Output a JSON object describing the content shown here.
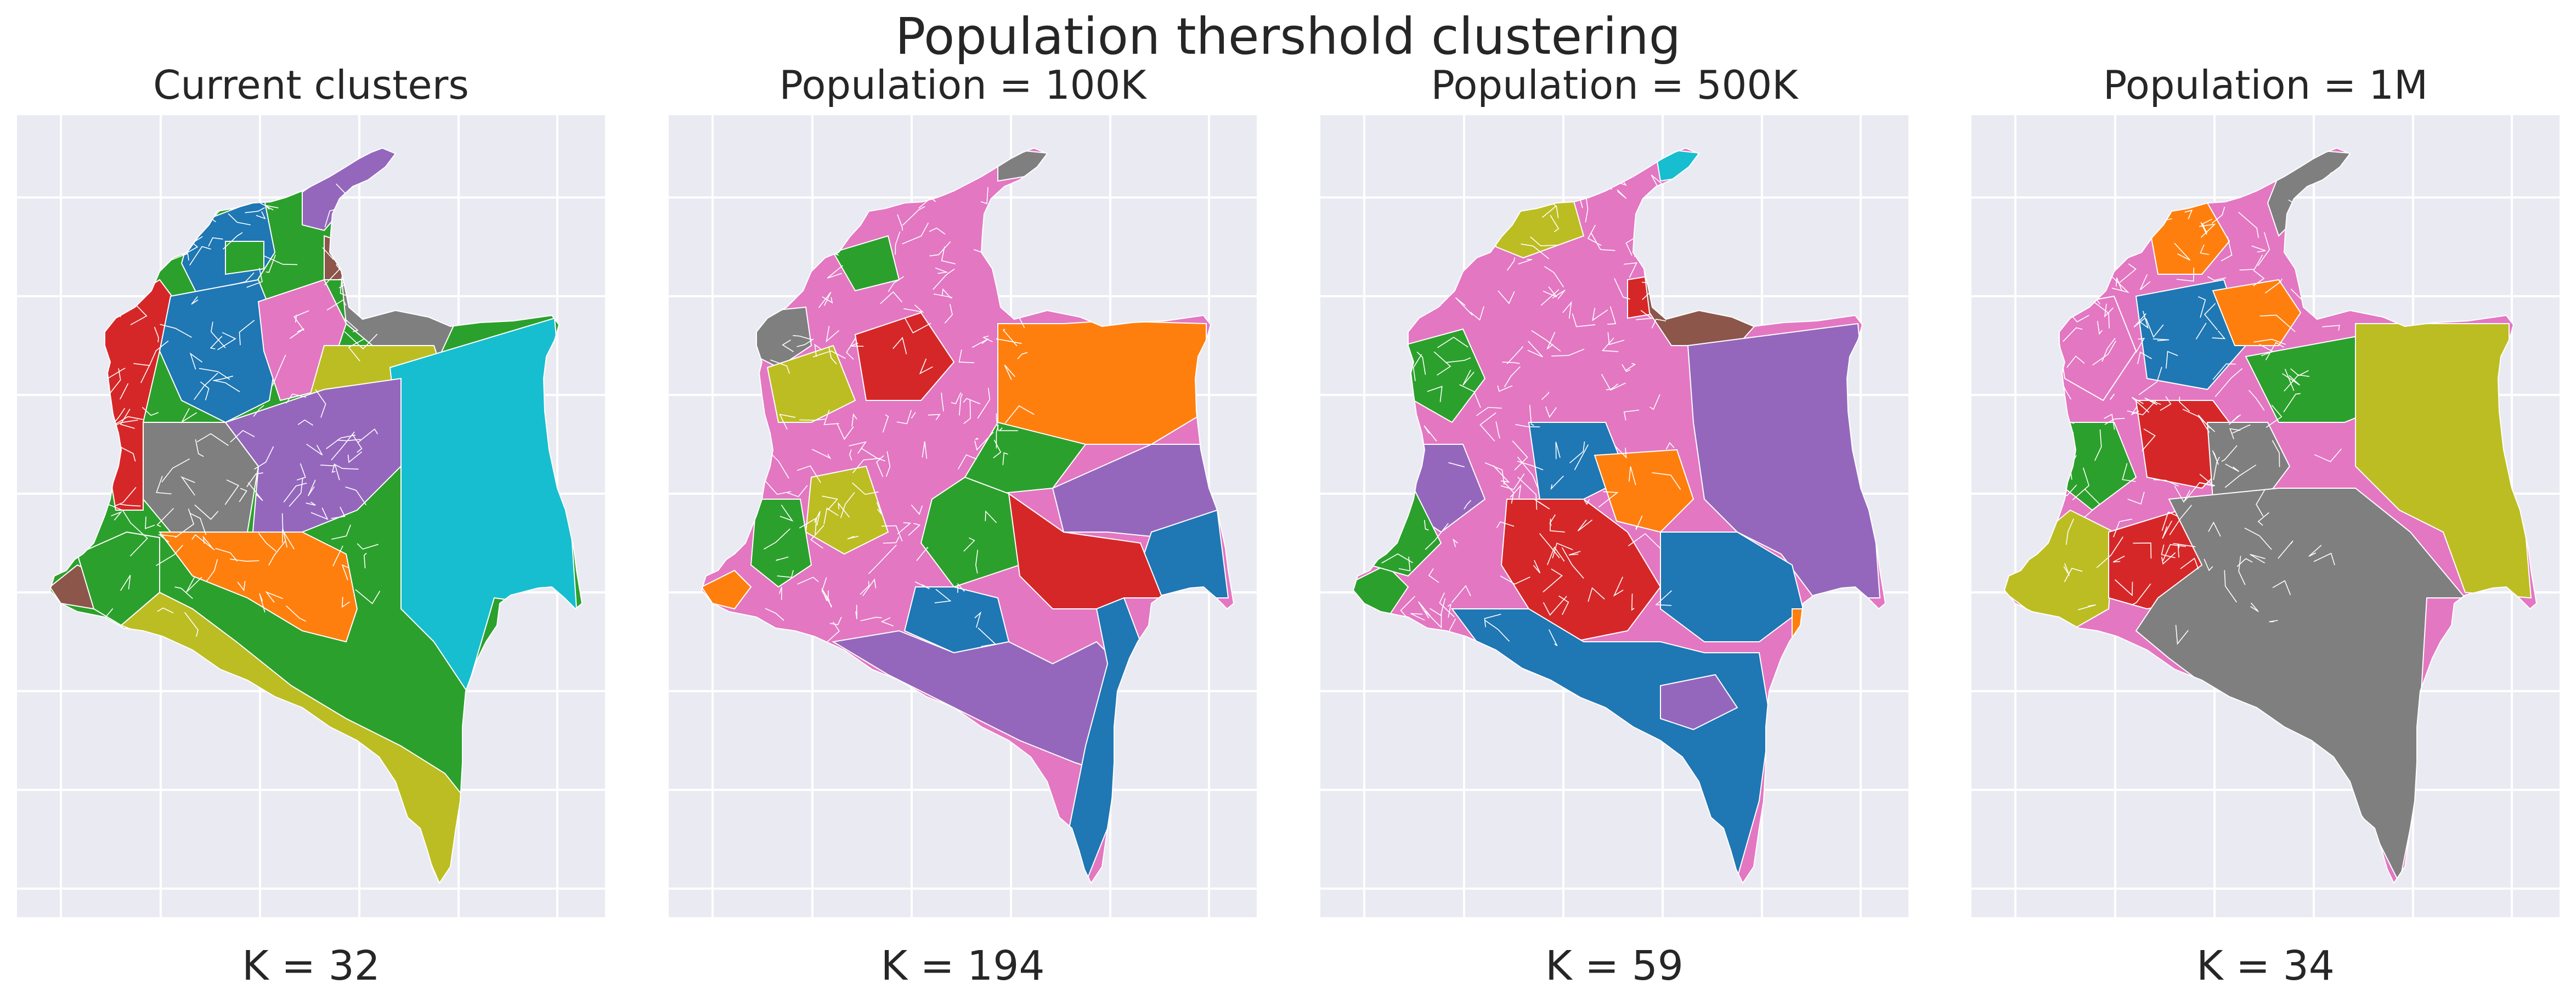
{
  "figure": {
    "title": "Population thershold clustering"
  },
  "panels": [
    {
      "title": "Current clusters",
      "k_label": "K = 32",
      "dominant_colors": [
        "#1f77b4",
        "#2ca02c",
        "#d62728",
        "#9467bd",
        "#8c564b",
        "#e377c2",
        "#7f7f7f",
        "#bcbd22",
        "#17becf",
        "#ff7f0e"
      ]
    },
    {
      "title": "Population = 100K",
      "k_label": "K = 194",
      "dominant_colors": [
        "#d62728",
        "#ff7f0e",
        "#9467bd",
        "#1f77b4",
        "#2ca02c",
        "#e377c2",
        "#bcbd22",
        "#17becf",
        "#7f7f7f",
        "#8c564b"
      ]
    },
    {
      "title": "Population = 500K",
      "k_label": "K = 59",
      "dominant_colors": [
        "#1f77b4",
        "#d62728",
        "#9467bd",
        "#ff7f0e",
        "#2ca02c",
        "#e377c2",
        "#8c564b",
        "#bcbd22",
        "#17becf",
        "#7f7f7f"
      ]
    },
    {
      "title": "Population = 1M",
      "k_label": "K = 34",
      "dominant_colors": [
        "#7f7f7f",
        "#bcbd22",
        "#2ca02c",
        "#1f77b4",
        "#d62728",
        "#e377c2",
        "#ff7f0e",
        "#17becf",
        "#8c564b",
        "#9467bd"
      ]
    }
  ],
  "style": {
    "axes_background": "#eaeaf2",
    "grid_color": "#ffffff",
    "border_color": "#ffffff"
  }
}
